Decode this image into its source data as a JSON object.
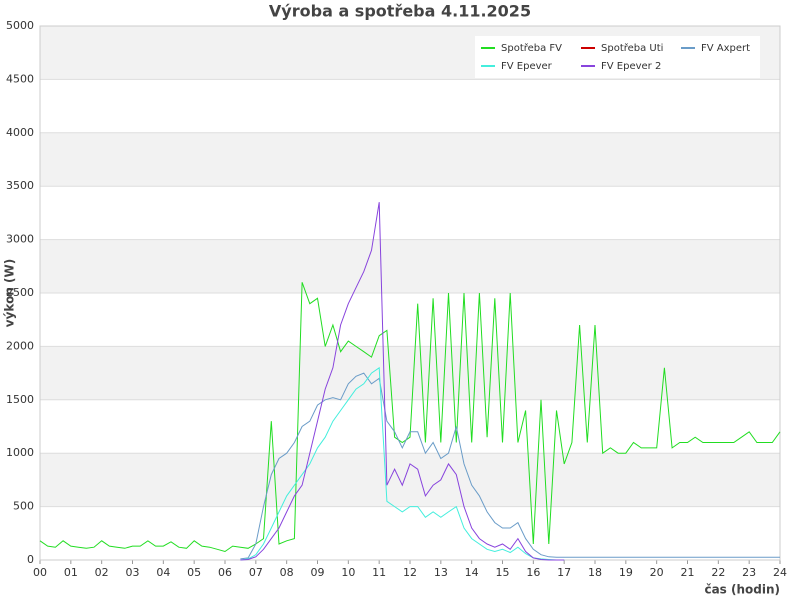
{
  "chart_data": {
    "type": "line",
    "title": "Výroba a spotřeba 4.11.2025",
    "x_label": "čas (hodin)",
    "y_label": "výkon (W)",
    "x": [
      0,
      0.25,
      0.5,
      0.75,
      1,
      1.25,
      1.5,
      1.75,
      2,
      2.25,
      2.5,
      2.75,
      3,
      3.25,
      3.5,
      3.75,
      4,
      4.25,
      4.5,
      4.75,
      5,
      5.25,
      5.5,
      5.75,
      6,
      6.25,
      6.5,
      6.75,
      7,
      7.25,
      7.5,
      7.75,
      8,
      8.25,
      8.5,
      8.75,
      9,
      9.25,
      9.5,
      9.75,
      10,
      10.25,
      10.5,
      10.75,
      11,
      11.25,
      11.5,
      11.75,
      12,
      12.25,
      12.5,
      12.75,
      13,
      13.25,
      13.5,
      13.75,
      14,
      14.25,
      14.5,
      14.75,
      15,
      15.25,
      15.5,
      15.75,
      16,
      16.25,
      16.5,
      16.75,
      17,
      17.25,
      17.5,
      17.75,
      18,
      18.25,
      18.5,
      18.75,
      19,
      19.25,
      19.5,
      19.75,
      20,
      20.25,
      20.5,
      20.75,
      21,
      21.25,
      21.5,
      21.75,
      22,
      22.25,
      22.5,
      22.75,
      23,
      23.25,
      23.5,
      23.75,
      24
    ],
    "series": [
      {
        "name": "Spotřeba FV",
        "color": "#22dd22",
        "values": [
          180,
          130,
          120,
          180,
          130,
          120,
          110,
          120,
          180,
          130,
          120,
          110,
          130,
          130,
          180,
          130,
          130,
          170,
          120,
          110,
          180,
          130,
          120,
          100,
          80,
          130,
          120,
          110,
          150,
          200,
          1300,
          150,
          180,
          200,
          2600,
          2400,
          2450,
          2000,
          2200,
          1950,
          2050,
          2000,
          1950,
          1900,
          2100,
          2150,
          1150,
          1100,
          1150,
          2400,
          1100,
          2450,
          1100,
          2500,
          1100,
          2500,
          1100,
          2500,
          1150,
          2450,
          1100,
          2500,
          1100,
          1400,
          150,
          1500,
          150,
          1400,
          900,
          1100,
          2200,
          1100,
          2200,
          1000,
          1050,
          1000,
          1000,
          1100,
          1050,
          1050,
          1050,
          1800,
          1050,
          1100,
          1100,
          1150,
          1100,
          1100,
          1100,
          1100,
          1100,
          1150,
          1200,
          1100,
          1100,
          1100,
          1200
        ]
      },
      {
        "name": "Spotřeba Uti",
        "color": "#cc0000",
        "values": [
          null,
          null,
          null,
          null,
          null,
          null,
          null,
          null,
          null,
          null,
          null,
          null,
          null,
          null,
          null,
          null,
          null,
          null,
          null,
          null,
          null,
          null,
          null,
          null,
          null,
          null,
          null,
          null,
          null,
          null,
          null,
          null,
          null,
          null,
          null,
          null,
          null,
          null,
          null,
          null,
          null,
          null,
          null,
          null,
          null,
          null,
          null,
          null,
          null,
          null,
          null,
          null,
          null,
          null,
          null,
          null,
          null,
          null,
          null,
          null,
          null,
          null,
          null,
          null,
          null,
          null,
          null,
          null,
          null,
          null,
          null,
          null,
          null,
          null,
          null,
          null,
          null,
          null,
          null,
          null,
          null,
          null,
          null,
          null,
          null,
          null,
          null,
          null,
          null,
          null,
          null,
          null,
          null,
          null,
          null,
          null,
          null
        ]
      },
      {
        "name": "FV Axpert",
        "color": "#6a9cc8",
        "values": [
          null,
          null,
          null,
          null,
          null,
          null,
          null,
          null,
          null,
          null,
          null,
          null,
          null,
          null,
          null,
          null,
          null,
          null,
          null,
          null,
          null,
          null,
          null,
          null,
          null,
          null,
          10,
          20,
          150,
          500,
          800,
          950,
          1000,
          1100,
          1250,
          1300,
          1450,
          1500,
          1520,
          1500,
          1650,
          1720,
          1750,
          1650,
          1700,
          1300,
          1200,
          1050,
          1200,
          1200,
          1000,
          1100,
          950,
          1000,
          1250,
          900,
          700,
          600,
          450,
          350,
          300,
          300,
          350,
          200,
          100,
          50,
          30,
          25,
          25,
          25,
          25,
          25,
          25,
          25,
          25,
          25,
          25,
          25,
          25,
          25,
          25,
          25,
          25,
          25,
          25,
          25,
          25,
          25,
          25,
          25,
          25,
          25,
          25,
          25,
          25,
          25,
          25
        ]
      },
      {
        "name": "FV Epever",
        "color": "#44eedd",
        "values": [
          null,
          null,
          null,
          null,
          null,
          null,
          null,
          null,
          null,
          null,
          null,
          null,
          null,
          null,
          null,
          null,
          null,
          null,
          null,
          null,
          null,
          null,
          null,
          null,
          null,
          null,
          0,
          10,
          50,
          150,
          300,
          450,
          600,
          700,
          800,
          900,
          1050,
          1150,
          1300,
          1400,
          1500,
          1600,
          1650,
          1750,
          1800,
          550,
          500,
          450,
          500,
          500,
          400,
          450,
          400,
          450,
          500,
          300,
          200,
          150,
          100,
          80,
          100,
          70,
          120,
          60,
          20,
          10,
          5,
          0,
          0,
          null,
          null,
          null,
          null,
          null,
          null,
          null,
          null,
          null,
          null,
          null,
          null,
          null,
          null,
          null,
          null,
          null,
          null,
          null,
          null,
          null,
          null,
          null,
          null,
          null,
          null,
          null,
          null
        ]
      },
      {
        "name": "FV Epever 2",
        "color": "#8844dd",
        "values": [
          null,
          null,
          null,
          null,
          null,
          null,
          null,
          null,
          null,
          null,
          null,
          null,
          null,
          null,
          null,
          null,
          null,
          null,
          null,
          null,
          null,
          null,
          null,
          null,
          null,
          null,
          0,
          5,
          30,
          100,
          200,
          300,
          450,
          600,
          700,
          1000,
          1300,
          1600,
          1800,
          2200,
          2400,
          2550,
          2700,
          2900,
          3350,
          700,
          850,
          700,
          900,
          850,
          600,
          700,
          750,
          900,
          800,
          500,
          300,
          200,
          150,
          120,
          150,
          100,
          200,
          80,
          20,
          5,
          0,
          0,
          0,
          null,
          null,
          null,
          null,
          null,
          null,
          null,
          null,
          null,
          null,
          null,
          null,
          null,
          null,
          null,
          null,
          null,
          null,
          null,
          null,
          null,
          null,
          null,
          null,
          null,
          null,
          null,
          null
        ]
      }
    ],
    "xlim": [
      0,
      24
    ],
    "ylim": [
      0,
      5000
    ],
    "xticks": [
      {
        "value": 0,
        "label": "00"
      },
      {
        "value": 1,
        "label": "01"
      },
      {
        "value": 2,
        "label": "02"
      },
      {
        "value": 3,
        "label": "03"
      },
      {
        "value": 4,
        "label": "04"
      },
      {
        "value": 5,
        "label": "05"
      },
      {
        "value": 6,
        "label": "06"
      },
      {
        "value": 7,
        "label": "07"
      },
      {
        "value": 8,
        "label": "08"
      },
      {
        "value": 9,
        "label": "09"
      },
      10,
      11,
      12,
      13,
      14,
      15,
      16,
      17,
      18,
      19,
      20,
      21,
      22,
      23,
      24
    ],
    "yticks": [
      0,
      500,
      1000,
      1500,
      2000,
      2500,
      3000,
      3500,
      4000,
      4500,
      5000
    ],
    "grid": true,
    "legend": "upper right"
  }
}
